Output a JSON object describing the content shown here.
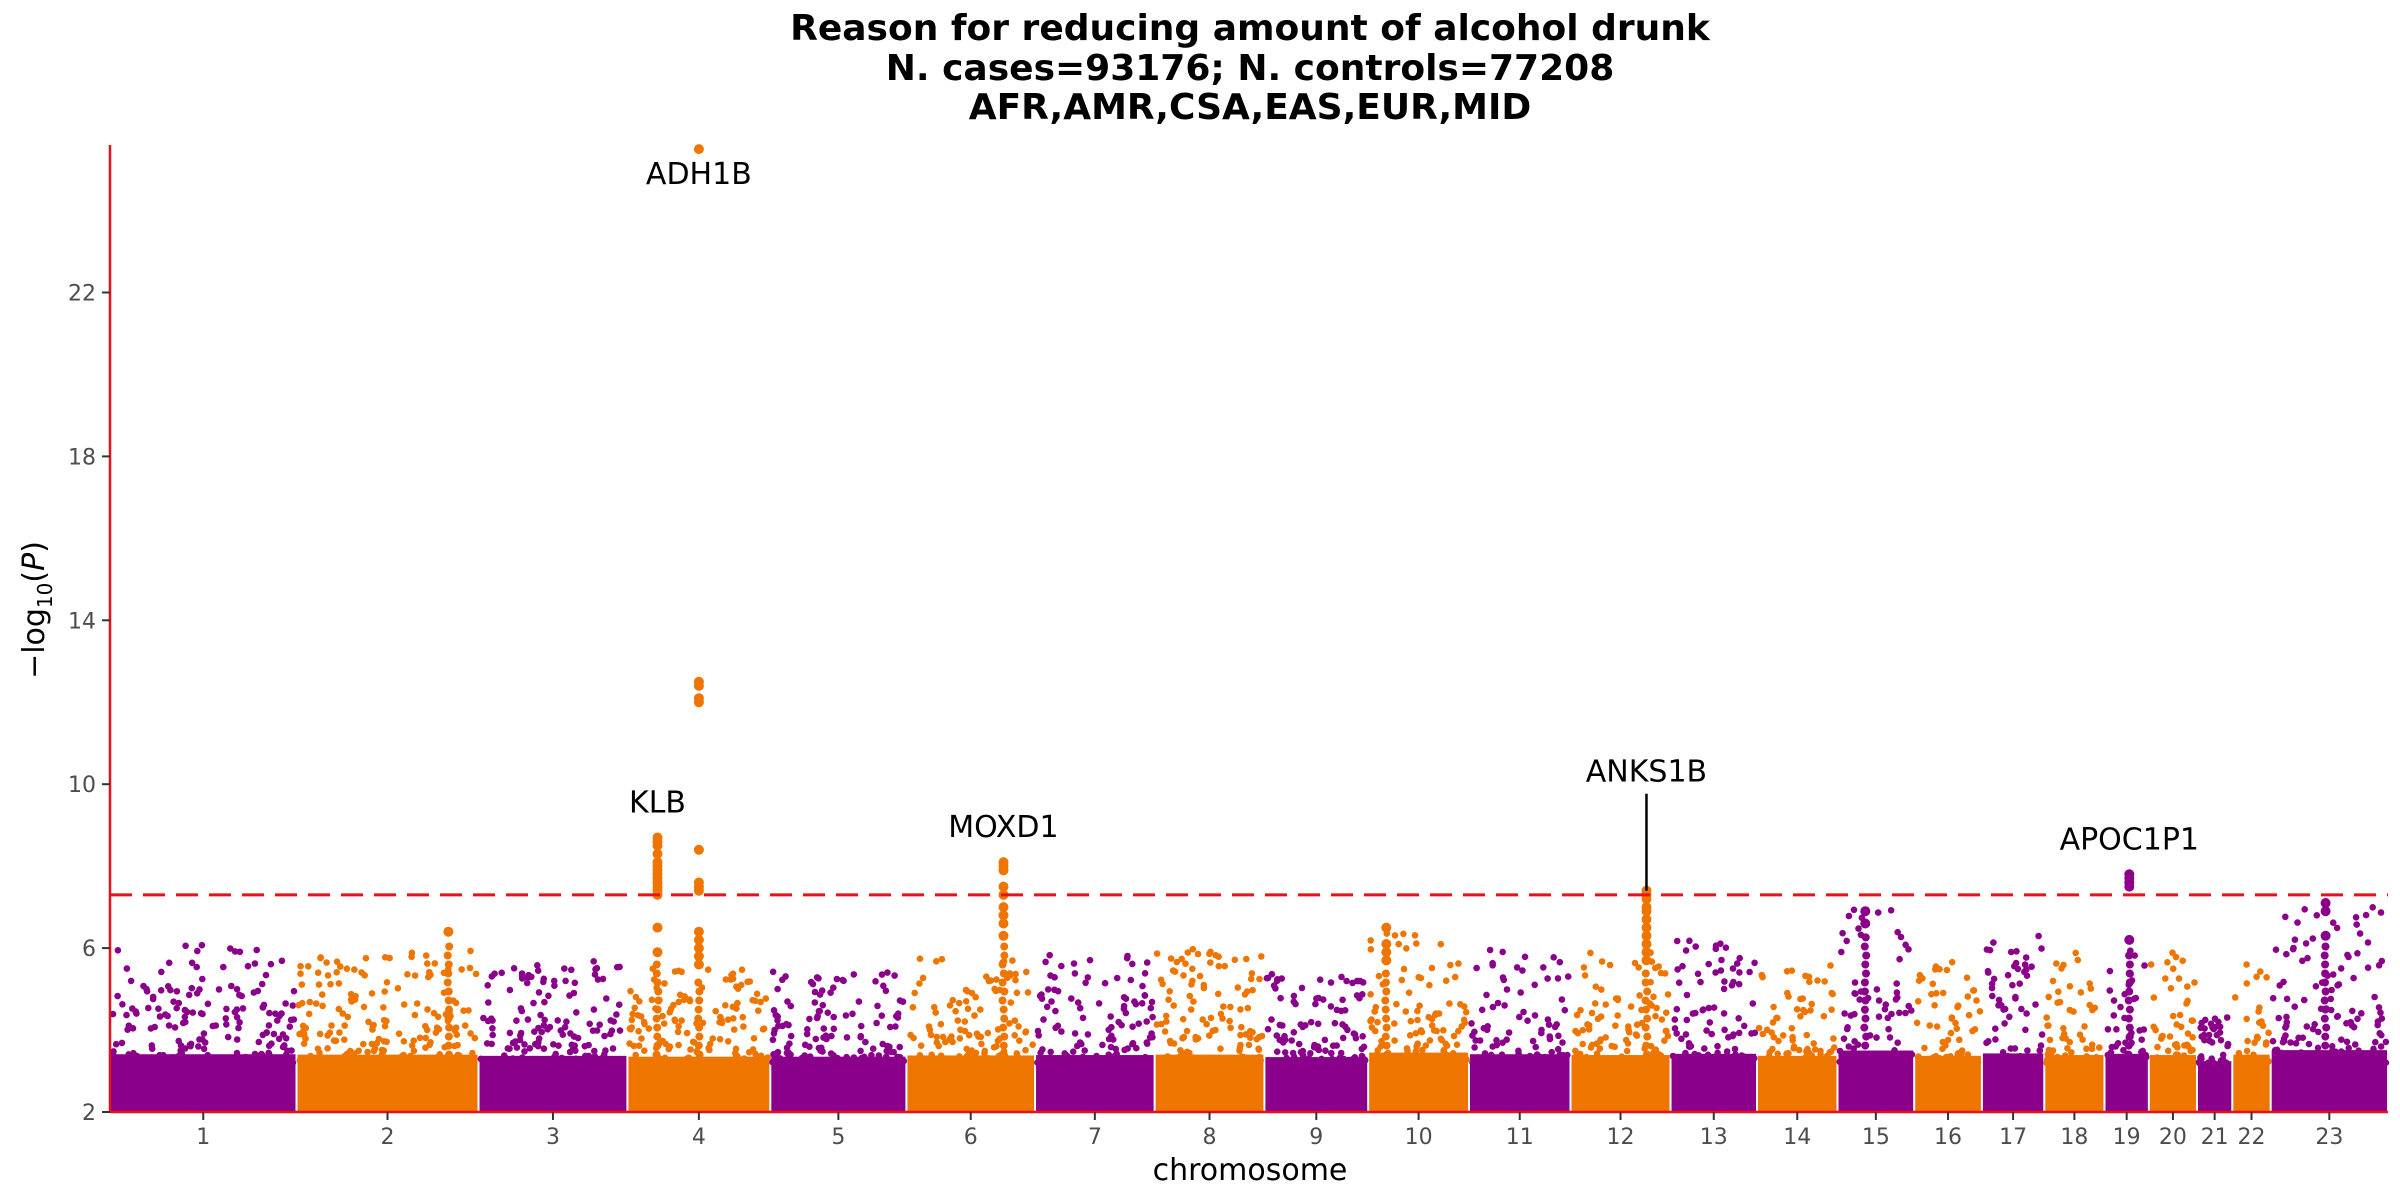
{
  "chart_data": {
    "type": "scatter",
    "subtype": "manhattan",
    "title_lines": [
      "Reason for reducing amount of alcohol drunk",
      "N. cases=93176; N. controls=77208",
      "AFR,AMR,CSA,EAS,EUR,MID"
    ],
    "xlabel": "chromosome",
    "ylabel": "-log10(P)",
    "ylim": [
      2,
      25.6
    ],
    "yticks": [
      2,
      6,
      10,
      14,
      18,
      22
    ],
    "significance_threshold": 7.3,
    "colors": {
      "odd_chromosome": "#8B008B",
      "even_chromosome": "#EE7600",
      "threshold_line": "#E8111A",
      "axis_line": "#E8111A",
      "text": "#000000",
      "tick_text": "#4d4d4d"
    },
    "grid": false,
    "chromosomes": [
      {
        "label": "1",
        "start": 0,
        "end": 248,
        "max": 6.1,
        "color": "purple"
      },
      {
        "label": "2",
        "start": 248,
        "end": 490,
        "max": 6.0,
        "color": "orange"
      },
      {
        "label": "3",
        "start": 490,
        "end": 688,
        "max": 5.7,
        "color": "purple"
      },
      {
        "label": "4",
        "start": 688,
        "end": 878,
        "max": 5.5,
        "color": "orange"
      },
      {
        "label": "5",
        "start": 878,
        "end": 1059,
        "max": 5.5,
        "color": "purple"
      },
      {
        "label": "6",
        "start": 1059,
        "end": 1230,
        "max": 5.8,
        "color": "orange"
      },
      {
        "label": "7",
        "start": 1230,
        "end": 1389,
        "max": 5.9,
        "color": "purple"
      },
      {
        "label": "8",
        "start": 1389,
        "end": 1535,
        "max": 6.0,
        "color": "orange"
      },
      {
        "label": "9",
        "start": 1535,
        "end": 1673,
        "max": 5.4,
        "color": "purple"
      },
      {
        "label": "10",
        "start": 1673,
        "end": 1807,
        "max": 6.5,
        "color": "orange"
      },
      {
        "label": "11",
        "start": 1807,
        "end": 1942,
        "max": 6.1,
        "color": "purple"
      },
      {
        "label": "12",
        "start": 1942,
        "end": 2075,
        "max": 5.9,
        "color": "orange"
      },
      {
        "label": "13",
        "start": 2075,
        "end": 2190,
        "max": 6.2,
        "color": "purple"
      },
      {
        "label": "14",
        "start": 2190,
        "end": 2297,
        "max": 5.7,
        "color": "orange"
      },
      {
        "label": "15",
        "start": 2297,
        "end": 2399,
        "max": 7.0,
        "color": "purple"
      },
      {
        "label": "16",
        "start": 2399,
        "end": 2489,
        "max": 5.7,
        "color": "orange"
      },
      {
        "label": "17",
        "start": 2489,
        "end": 2572,
        "max": 6.3,
        "color": "purple"
      },
      {
        "label": "18",
        "start": 2572,
        "end": 2652,
        "max": 5.9,
        "color": "orange"
      },
      {
        "label": "19",
        "start": 2652,
        "end": 2711,
        "max": 6.2,
        "color": "purple"
      },
      {
        "label": "20",
        "start": 2711,
        "end": 2775,
        "max": 5.9,
        "color": "orange"
      },
      {
        "label": "21",
        "start": 2775,
        "end": 2822,
        "max": 4.4,
        "color": "purple"
      },
      {
        "label": "22",
        "start": 2822,
        "end": 2873,
        "max": 6.0,
        "color": "orange"
      },
      {
        "label": "23",
        "start": 2873,
        "end": 3029,
        "max": 7.1,
        "color": "purple"
      }
    ],
    "peaks": [
      {
        "chrom": "4",
        "x": 783,
        "values": [
          25.5,
          12.5,
          12.4,
          12.1,
          12.0,
          8.4,
          7.6,
          7.5,
          7.4,
          6.4,
          6.2,
          6.0,
          5.8,
          5.6
        ]
      },
      {
        "chrom": "4",
        "x": 728,
        "values": [
          8.7,
          8.6,
          8.5,
          8.3,
          8.1,
          8.0,
          7.9,
          7.8,
          7.7,
          7.6,
          7.5,
          7.4,
          7.3,
          6.5,
          5.9
        ]
      },
      {
        "chrom": "6",
        "x": 1188,
        "values": [
          8.1,
          8.0,
          7.9,
          7.5,
          7.3,
          7.0,
          6.8,
          6.6,
          6.3
        ]
      },
      {
        "chrom": "12",
        "x": 2043,
        "values": [
          7.4,
          7.3,
          7.2,
          7.0,
          6.9,
          6.7,
          6.5,
          6.3,
          6.1,
          5.9,
          5.7
        ]
      },
      {
        "chrom": "19",
        "x": 2685,
        "values": [
          7.8,
          7.7,
          7.6,
          7.5,
          6.2
        ]
      },
      {
        "chrom": "15",
        "x": 2334,
        "values": [
          6.9,
          6.6
        ]
      },
      {
        "chrom": "23",
        "x": 2946,
        "values": [
          7.1,
          6.9,
          6.3
        ]
      },
      {
        "chrom": "10",
        "x": 1697,
        "values": [
          6.5,
          6.1,
          5.9,
          5.7
        ]
      },
      {
        "chrom": "2",
        "x": 450,
        "values": [
          6.4
        ]
      }
    ],
    "annotations": [
      {
        "label": "ADH1B",
        "x": 783,
        "y": 25.5
      },
      {
        "label": "KLB",
        "x": 728,
        "y": 8.7
      },
      {
        "label": "MOXD1",
        "x": 1188,
        "y": 8.1
      },
      {
        "label": "ANKS1B",
        "x": 2043,
        "y": 7.4,
        "leader_line": true
      },
      {
        "label": "APOC1P1",
        "x": 2685,
        "y": 7.8
      }
    ]
  }
}
